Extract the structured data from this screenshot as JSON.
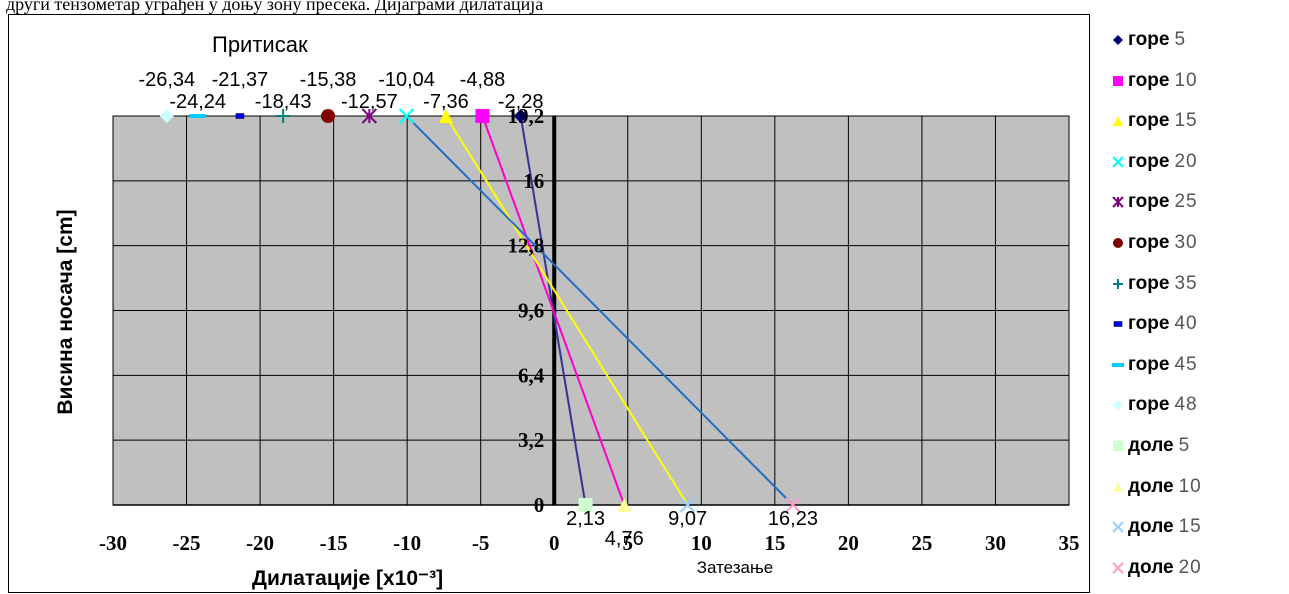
{
  "page": {
    "top_text": "други тензометар уграђен у доњу зону пресека. Дијаграми дилатација"
  },
  "chart_data": {
    "type": "scatter",
    "title": "Притисак",
    "xlabel": "Дилатације [x10⁻³]",
    "ylabel": "Висина носача [cm]",
    "annotation": "Затезање",
    "xlim": [
      -30,
      35
    ],
    "ylim": [
      0,
      19.2
    ],
    "x_ticks": [
      "-30",
      "-25",
      "-20",
      "-15",
      "-10",
      "-5",
      "0",
      "5",
      "10",
      "15",
      "20",
      "25",
      "30",
      "35"
    ],
    "y_ticks": [
      "0",
      "3,2",
      "6,4",
      "9,6",
      "12,8",
      "16",
      "19,2"
    ],
    "grid": true,
    "legend_position": "right",
    "series": [
      {
        "name_word": "горе",
        "name_num": "5",
        "x": -2.28,
        "y": 19.2,
        "marker": "diamond",
        "color": "#000080"
      },
      {
        "name_word": "горе",
        "name_num": "10",
        "x": -4.88,
        "y": 19.2,
        "marker": "square",
        "color": "#FF00FF"
      },
      {
        "name_word": "горе",
        "name_num": "15",
        "x": -7.36,
        "y": 19.2,
        "marker": "triangle",
        "color": "#FFFF00"
      },
      {
        "name_word": "горе",
        "name_num": "20",
        "x": -10.04,
        "y": 19.2,
        "marker": "x",
        "color": "#00FFFF"
      },
      {
        "name_word": "горе",
        "name_num": "25",
        "x": -12.57,
        "y": 19.2,
        "marker": "star",
        "color": "#800080"
      },
      {
        "name_word": "горе",
        "name_num": "30",
        "x": -15.38,
        "y": 19.2,
        "marker": "circle",
        "color": "#800000"
      },
      {
        "name_word": "горе",
        "name_num": "35",
        "x": -18.43,
        "y": 19.2,
        "marker": "plus",
        "color": "#008080"
      },
      {
        "name_word": "горе",
        "name_num": "40",
        "x": -21.37,
        "y": 19.2,
        "marker": "dash",
        "color": "#0000FF"
      },
      {
        "name_word": "горе",
        "name_num": "45",
        "x": -24.24,
        "y": 19.2,
        "marker": "line",
        "color": "#00CCFF"
      },
      {
        "name_word": "горе",
        "name_num": "48",
        "x": -26.34,
        "y": 19.2,
        "marker": "diamond",
        "color": "#CCFFFF"
      },
      {
        "name_word": "доле",
        "name_num": "5",
        "x": 2.13,
        "y": 0,
        "marker": "square",
        "color": "#CCFFCC"
      },
      {
        "name_word": "доле",
        "name_num": "10",
        "x": 4.76,
        "y": 0,
        "marker": "triangle",
        "color": "#FFFF99"
      },
      {
        "name_word": "доле",
        "name_num": "15",
        "x": 9.07,
        "y": 0,
        "marker": "x",
        "color": "#99CCFF"
      },
      {
        "name_word": "доле",
        "name_num": "20",
        "x": 16.23,
        "y": 0,
        "marker": "x",
        "color": "#FF99CC"
      }
    ],
    "lines": [
      {
        "from_x": -2.28,
        "from_y": 19.2,
        "to_x": 2.13,
        "to_y": 0,
        "color": "#333399"
      },
      {
        "from_x": -4.88,
        "from_y": 19.2,
        "to_x": 4.76,
        "to_y": 0,
        "color": "#FF00CC"
      },
      {
        "from_x": -7.36,
        "from_y": 19.2,
        "to_x": 9.07,
        "to_y": 0,
        "color": "#FFFF00"
      },
      {
        "from_x": -10.04,
        "from_y": 19.2,
        "to_x": 16.23,
        "to_y": 0,
        "color": "#1F6FC5"
      }
    ],
    "top_labels": [
      {
        "text": "-26,34",
        "row": 1
      },
      {
        "text": "-24,24",
        "row": 2
      },
      {
        "text": "-21,37",
        "row": 1
      },
      {
        "text": "-18,43",
        "row": 2
      },
      {
        "text": "-15,38",
        "row": 1
      },
      {
        "text": "-12,57",
        "row": 2
      },
      {
        "text": "-10,04",
        "row": 1
      },
      {
        "text": "-7,36",
        "row": 2
      },
      {
        "text": "-4,88",
        "row": 1
      },
      {
        "text": "-2,28",
        "row": 2
      }
    ],
    "bottom_labels": [
      "2,13",
      "4,76",
      "9,07",
      "16,23"
    ],
    "colors": {
      "plot_bg": "#C0C0C0",
      "grid": "#000000"
    }
  }
}
